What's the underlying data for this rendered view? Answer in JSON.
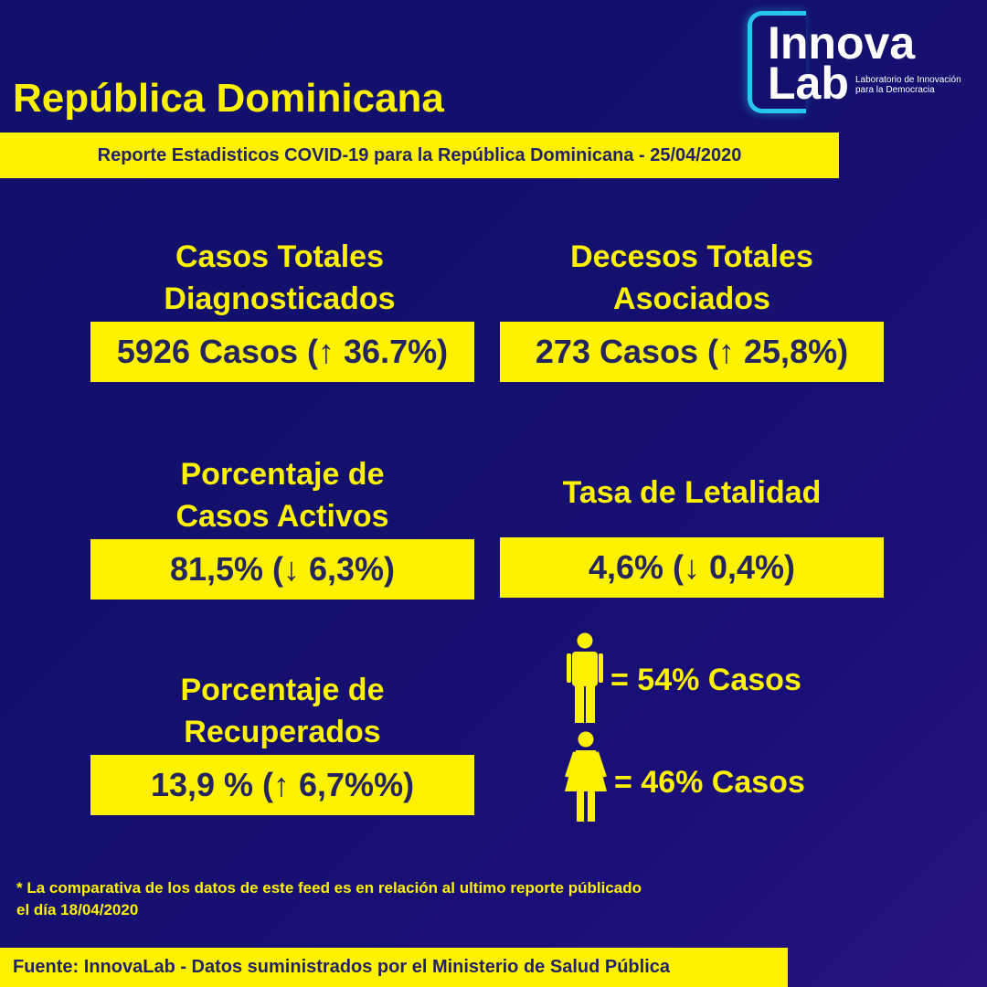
{
  "logo": {
    "line1": "Innova",
    "line2": "Lab",
    "sub1": "Laboratorio de Innovación",
    "sub2": "para la Democracia"
  },
  "header": {
    "title": "República Dominicana",
    "subtitle": "Reporte Estadisticos COVID-19 para la República Dominicana - 25/04/2020"
  },
  "stats": {
    "total_cases": {
      "label_line1": "Casos Totales",
      "label_line2": "Diagnosticados",
      "value": "5926 Casos (↑ 36.7%)"
    },
    "total_deaths": {
      "label_line1": "Decesos Totales",
      "label_line2": "Asociados",
      "value": "273 Casos (↑ 25,8%)"
    },
    "active_pct": {
      "label_line1": "Porcentaje de",
      "label_line2": "Casos Activos",
      "value": "81,5% (↓ 6,3%)"
    },
    "lethality": {
      "label": "Tasa de Letalidad",
      "value": "4,6% (↓ 0,4%)"
    },
    "recovered_pct": {
      "label_line1": "Porcentaje de",
      "label_line2": "Recuperados",
      "value": "13,9 % (↑ 6,7%%)"
    }
  },
  "gender": {
    "male": {
      "icon": "male-person-icon",
      "text": "= 54% Casos"
    },
    "female": {
      "icon": "female-person-icon",
      "text": "= 46% Casos"
    }
  },
  "note": {
    "line1": "* La comparativa de los datos de este feed es en relación al ultimo reporte públicado",
    "line2": "el día 18/04/2020"
  },
  "footer": {
    "source": "Fuente: InnovaLab - Datos suministrados por el Ministerio de Salud Pública"
  },
  "colors": {
    "background": "#14106e",
    "accent": "#fff200",
    "box_text": "#24245e",
    "logo_bracket": "#27c7ec"
  }
}
